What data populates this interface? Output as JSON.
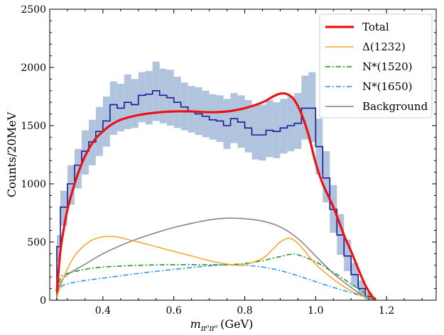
{
  "chart_data": {
    "type": "line",
    "title": "",
    "xlabel_main": "m",
    "xlabel_sub": "π⁰π⁰",
    "xlabel_unit": "(GeV)",
    "ylabel": "Counts/20MeV",
    "xlim": [
      0.25,
      1.34
    ],
    "ylim": [
      0,
      2500
    ],
    "x_major_ticks": [
      0.4,
      0.6,
      0.8,
      1.0,
      1.2
    ],
    "x_tick_labels": [
      "0.4",
      "0.6",
      "0.8",
      "1.0",
      "1.2"
    ],
    "x_minor_step": 0.05,
    "y_major_ticks": [
      0,
      500,
      1000,
      1500,
      2000,
      2500
    ],
    "y_tick_labels": [
      "0",
      "500",
      "1000",
      "1500",
      "2000",
      "2500"
    ],
    "y_minor_step": 100,
    "grid": false,
    "legend_position": "top-right",
    "legend": [
      {
        "label": "Total",
        "color": "#ee1111",
        "dash": "solid",
        "key": "total"
      },
      {
        "label": "Δ(1232)",
        "color": "#f5a623",
        "dash": "solid",
        "key": "delta"
      },
      {
        "label": "N*(1520)",
        "color": "#1a8c1a",
        "dash": "dashdot",
        "key": "n1520"
      },
      {
        "label": "N*(1650)",
        "color": "#1e90ff",
        "dash": "dashdot",
        "key": "n1650"
      },
      {
        "label": "Background",
        "color": "#808080",
        "dash": "solid",
        "key": "background"
      }
    ],
    "histogram": {
      "name": "Data",
      "color": "#1a1a9a",
      "band_color": "#b0c4de",
      "bin_edges": [
        0.27,
        0.28,
        0.3,
        0.32,
        0.34,
        0.36,
        0.38,
        0.4,
        0.42,
        0.44,
        0.46,
        0.48,
        0.5,
        0.52,
        0.54,
        0.56,
        0.58,
        0.6,
        0.62,
        0.64,
        0.66,
        0.68,
        0.7,
        0.72,
        0.74,
        0.76,
        0.78,
        0.8,
        0.82,
        0.84,
        0.86,
        0.88,
        0.9,
        0.92,
        0.94,
        0.96,
        0.98,
        1.0,
        1.02,
        1.04,
        1.06,
        1.08,
        1.1,
        1.12,
        1.14,
        1.16
      ],
      "values": [
        460,
        800,
        1000,
        1160,
        1280,
        1360,
        1450,
        1540,
        1680,
        1650,
        1700,
        1680,
        1760,
        1770,
        1800,
        1760,
        1740,
        1700,
        1660,
        1620,
        1600,
        1580,
        1550,
        1540,
        1500,
        1560,
        1530,
        1480,
        1420,
        1420,
        1460,
        1450,
        1480,
        1500,
        1520,
        1650,
        1650,
        1320,
        1050,
        780,
        560,
        380,
        220,
        100,
        30
      ],
      "band_low": [
        330,
        640,
        820,
        960,
        1080,
        1160,
        1240,
        1320,
        1420,
        1450,
        1470,
        1480,
        1530,
        1510,
        1540,
        1520,
        1500,
        1480,
        1460,
        1440,
        1420,
        1400,
        1380,
        1360,
        1300,
        1350,
        1310,
        1270,
        1210,
        1200,
        1230,
        1220,
        1260,
        1280,
        1300,
        1380,
        1360,
        1080,
        840,
        580,
        390,
        250,
        120,
        40,
        5
      ],
      "band_high": [
        560,
        940,
        1160,
        1300,
        1460,
        1550,
        1660,
        1750,
        1880,
        1860,
        1940,
        1900,
        1960,
        1970,
        2050,
        1990,
        1980,
        1920,
        1870,
        1840,
        1830,
        1800,
        1770,
        1760,
        1730,
        1780,
        1760,
        1720,
        1680,
        1680,
        1720,
        1700,
        1730,
        1750,
        1780,
        1930,
        1960,
        1560,
        1280,
        990,
        740,
        520,
        320,
        170,
        70
      ]
    },
    "series": [
      {
        "name": "Total",
        "key": "total",
        "x": [
          0.27,
          0.28,
          0.29,
          0.3,
          0.32,
          0.34,
          0.36,
          0.38,
          0.4,
          0.42,
          0.45,
          0.5,
          0.55,
          0.6,
          0.65,
          0.7,
          0.75,
          0.8,
          0.85,
          0.88,
          0.9,
          0.92,
          0.94,
          0.96,
          0.98,
          1.0,
          1.02,
          1.05,
          1.08,
          1.1,
          1.12,
          1.14,
          1.16,
          1.17
        ],
        "y": [
          70,
          420,
          620,
          780,
          1000,
          1170,
          1300,
          1390,
          1450,
          1500,
          1550,
          1590,
          1612,
          1622,
          1622,
          1615,
          1622,
          1650,
          1700,
          1750,
          1775,
          1770,
          1720,
          1600,
          1420,
          1180,
          1000,
          800,
          560,
          420,
          270,
          130,
          30,
          10
        ]
      },
      {
        "name": "Δ(1232)",
        "key": "delta",
        "x": [
          0.27,
          0.28,
          0.3,
          0.32,
          0.34,
          0.36,
          0.38,
          0.4,
          0.42,
          0.44,
          0.46,
          0.5,
          0.55,
          0.6,
          0.65,
          0.7,
          0.75,
          0.78,
          0.8,
          0.85,
          0.88,
          0.9,
          0.92,
          0.93,
          0.95,
          0.97,
          1.0,
          1.05,
          1.1,
          1.14,
          1.17
        ],
        "y": [
          20,
          120,
          270,
          380,
          450,
          500,
          530,
          545,
          548,
          545,
          530,
          500,
          460,
          420,
          380,
          340,
          310,
          300,
          305,
          360,
          440,
          500,
          530,
          530,
          490,
          420,
          310,
          180,
          80,
          30,
          10
        ]
      },
      {
        "name": "N*(1520)",
        "key": "n1520",
        "x": [
          0.27,
          0.28,
          0.3,
          0.35,
          0.4,
          0.5,
          0.6,
          0.7,
          0.75,
          0.8,
          0.85,
          0.9,
          0.93,
          0.95,
          1.0,
          1.05,
          1.1,
          1.14,
          1.17
        ],
        "y": [
          60,
          190,
          230,
          265,
          285,
          300,
          305,
          305,
          305,
          315,
          340,
          375,
          395,
          390,
          330,
          240,
          140,
          60,
          10
        ]
      },
      {
        "name": "N*(1650)",
        "key": "n1650",
        "x": [
          0.27,
          0.28,
          0.3,
          0.35,
          0.4,
          0.5,
          0.6,
          0.7,
          0.75,
          0.8,
          0.85,
          0.9,
          0.95,
          1.0,
          1.05,
          1.1,
          1.14,
          1.17
        ],
        "y": [
          30,
          110,
          140,
          170,
          190,
          230,
          265,
          295,
          305,
          300,
          285,
          255,
          210,
          160,
          110,
          65,
          25,
          5
        ]
      },
      {
        "name": "Background",
        "key": "background",
        "x": [
          0.27,
          0.28,
          0.3,
          0.35,
          0.4,
          0.45,
          0.5,
          0.55,
          0.6,
          0.65,
          0.7,
          0.75,
          0.8,
          0.85,
          0.9,
          0.95,
          1.0,
          1.05,
          1.1,
          1.14,
          1.17
        ],
        "y": [
          40,
          150,
          220,
          310,
          400,
          470,
          530,
          580,
          625,
          660,
          690,
          705,
          700,
          680,
          630,
          530,
          380,
          230,
          110,
          30,
          5
        ]
      }
    ]
  }
}
